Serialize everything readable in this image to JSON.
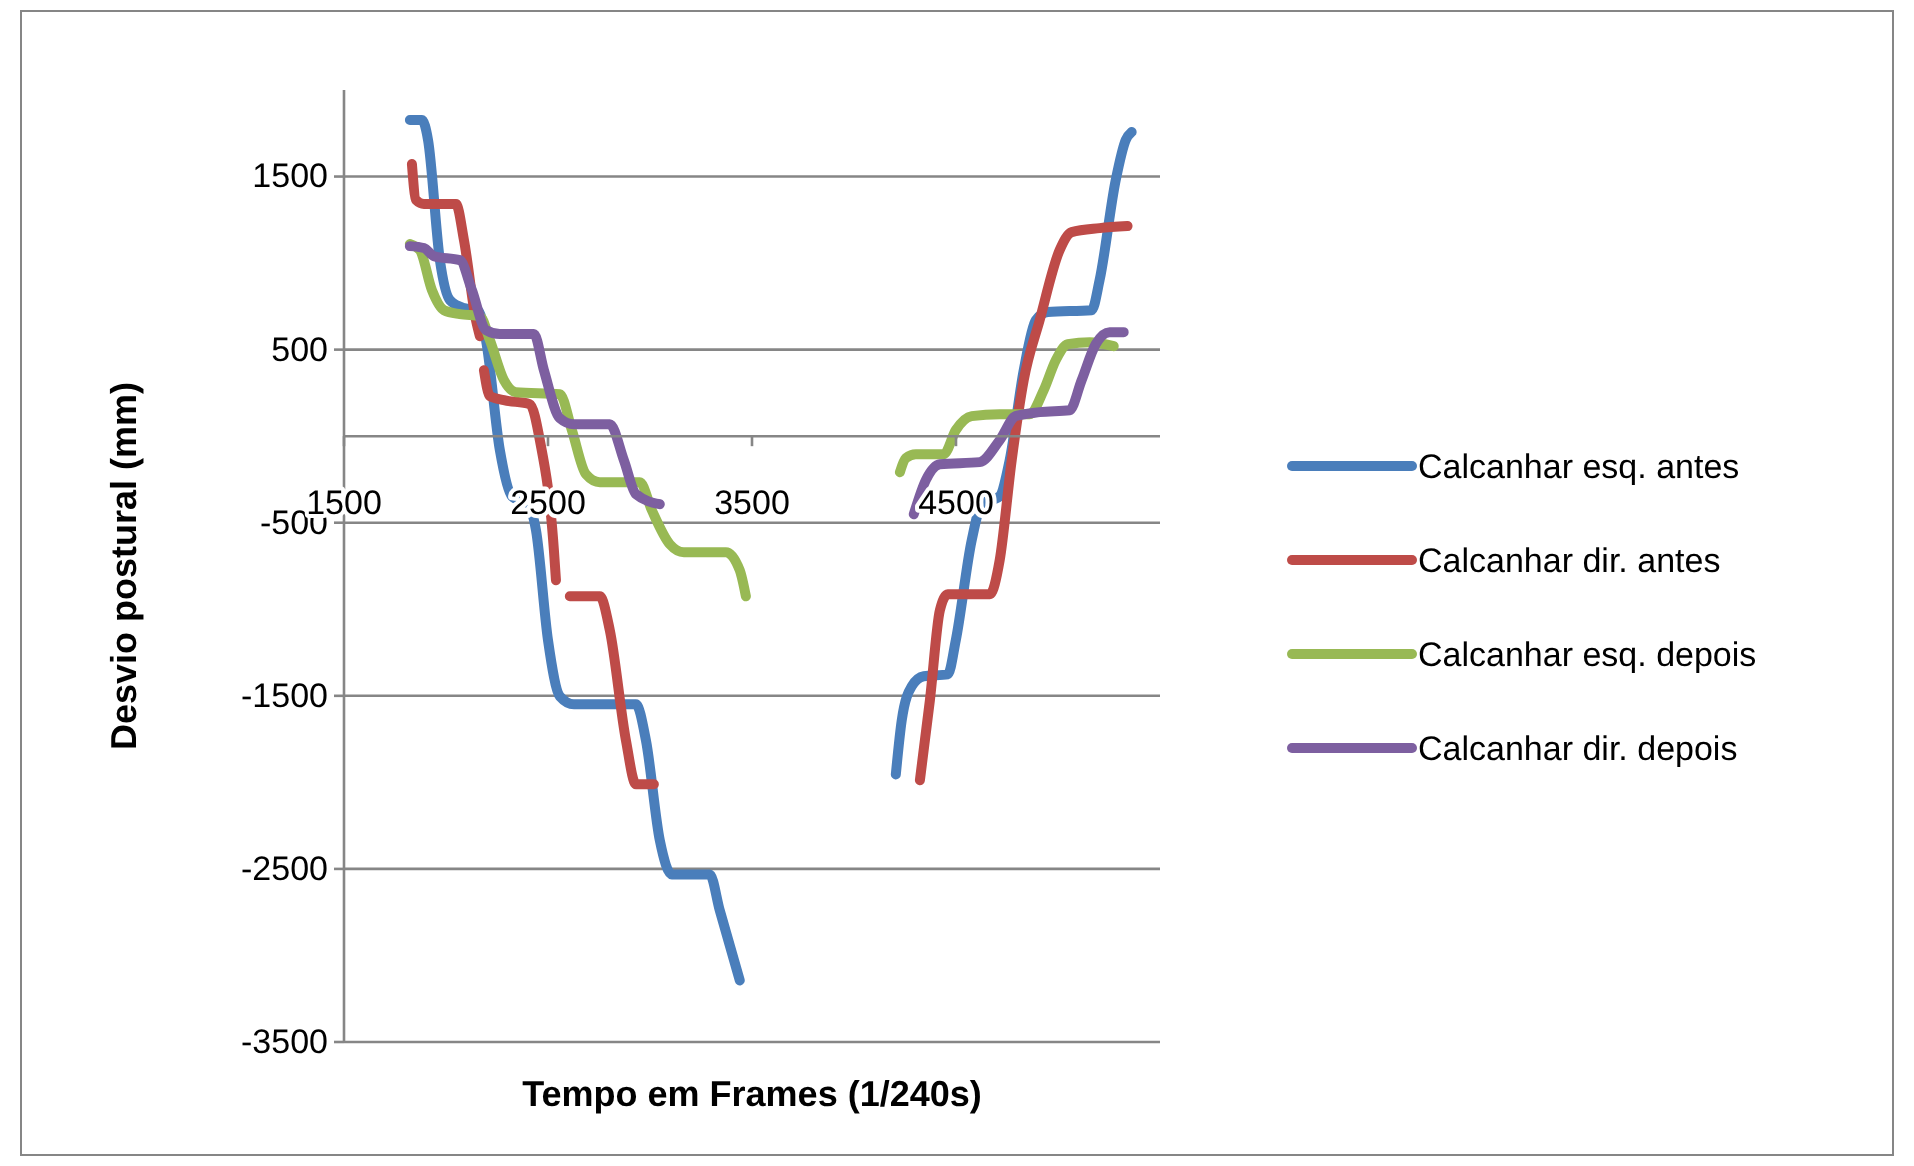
{
  "chart_data": {
    "type": "line",
    "xlabel": "Tempo em Frames (1/240s)",
    "ylabel": "Desvio postural (mm)",
    "xlim": [
      1500,
      5500
    ],
    "xticks": [
      1500,
      2500,
      3500,
      4500
    ],
    "ylim": [
      -3500,
      2000
    ],
    "yticks": [
      -3500,
      -2500,
      -1500,
      -500,
      500,
      1500
    ],
    "grid": "y",
    "legend": "right",
    "marker": "none",
    "line_style": "solid",
    "series": [
      {
        "name": "Calcanhar esq. antes",
        "color": "#4a7ebb",
        "x": [
          1823,
          1882,
          1912,
          1970,
          2019,
          2088,
          2157,
          2196,
          2264,
          2323,
          2402,
          2441,
          2500,
          2558,
          2627,
          2931,
          2980,
          3048,
          3107,
          3293,
          3342,
          3440,
          3800,
          4205,
          4234,
          4283,
          4342,
          4460,
          4499,
          4577,
          4626,
          4714,
          4763,
          4832,
          4891,
          4950,
          5165,
          5204,
          5283,
          5332,
          5361
        ],
        "values": [
          1827,
          1827,
          1711,
          1017,
          786,
          740,
          728,
          555,
          -81,
          -347,
          -393,
          -543,
          -1179,
          -1503,
          -1549,
          -1549,
          -1757,
          -2335,
          -2532,
          -2532,
          -2740,
          -3144,
          null,
          -1954,
          -1642,
          -1445,
          -1387,
          -1376,
          -1179,
          -601,
          -393,
          -347,
          -139,
          381,
          670,
          717,
          728,
          902,
          1480,
          1711,
          1757
        ]
      },
      {
        "name": "Calcanhar dir. antes",
        "color": "#be4b48",
        "x": [
          1833,
          1853,
          1892,
          2049,
          2088,
          2147,
          2166,
          2176,
          2186,
          2215,
          2284,
          2411,
          2460,
          2529,
          2539,
          2570,
          2607,
          2754,
          2803,
          2882,
          2931,
          3019,
          3800,
          4323,
          4372,
          4421,
          4460,
          4666,
          4714,
          4773,
          4832,
          4910,
          5008,
          5067,
          5204,
          5341
        ],
        "values": [
          1572,
          1364,
          1341,
          1341,
          1133,
          670,
          578,
          null,
          381,
          231,
          208,
          185,
          -23,
          -659,
          -832,
          null,
          -925,
          -925,
          -1121,
          -1757,
          -2011,
          -2011,
          null,
          -1988,
          -1526,
          -1006,
          -913,
          -913,
          -717,
          -139,
          324,
          670,
          1075,
          1179,
          1202,
          1214
        ]
      },
      {
        "name": "Calcanhar esq. depois",
        "color": "#98b954",
        "x": [
          1823,
          1872,
          1931,
          1990,
          2068,
          2166,
          2215,
          2284,
          2343,
          2558,
          2617,
          2686,
          2754,
          2950,
          3009,
          3097,
          3166,
          3372,
          3440,
          3470,
          3800,
          4225,
          4254,
          4303,
          4440,
          4499,
          4577,
          4714,
          4861,
          4930,
          4989,
          5048,
          5156,
          5273
        ],
        "values": [
          1110,
          1075,
          844,
          728,
          705,
          694,
          555,
          324,
          254,
          243,
          35,
          -220,
          -266,
          -266,
          -428,
          -624,
          -670,
          -670,
          -775,
          -925,
          null,
          -208,
          -127,
          -104,
          -104,
          35,
          116,
          127,
          127,
          266,
          439,
          532,
          543,
          520
        ]
      },
      {
        "name": "Calcanhar dir. depois",
        "color": "#7d5fa0",
        "x": [
          1823,
          1892,
          1941,
          2068,
          2127,
          2196,
          2264,
          2431,
          2480,
          2558,
          2627,
          2803,
          2872,
          2931,
          3048,
          3800,
          4293,
          4352,
          4421,
          4616,
          4714,
          4793,
          4910,
          5057,
          5116,
          5185,
          5253,
          5322
        ],
        "values": [
          1098,
          1087,
          1040,
          1017,
          844,
          613,
          590,
          590,
          381,
          104,
          69,
          69,
          -139,
          -335,
          -393,
          null,
          -451,
          -254,
          -162,
          -150,
          -23,
          116,
          139,
          150,
          324,
          532,
          601,
          601
        ]
      }
    ]
  }
}
